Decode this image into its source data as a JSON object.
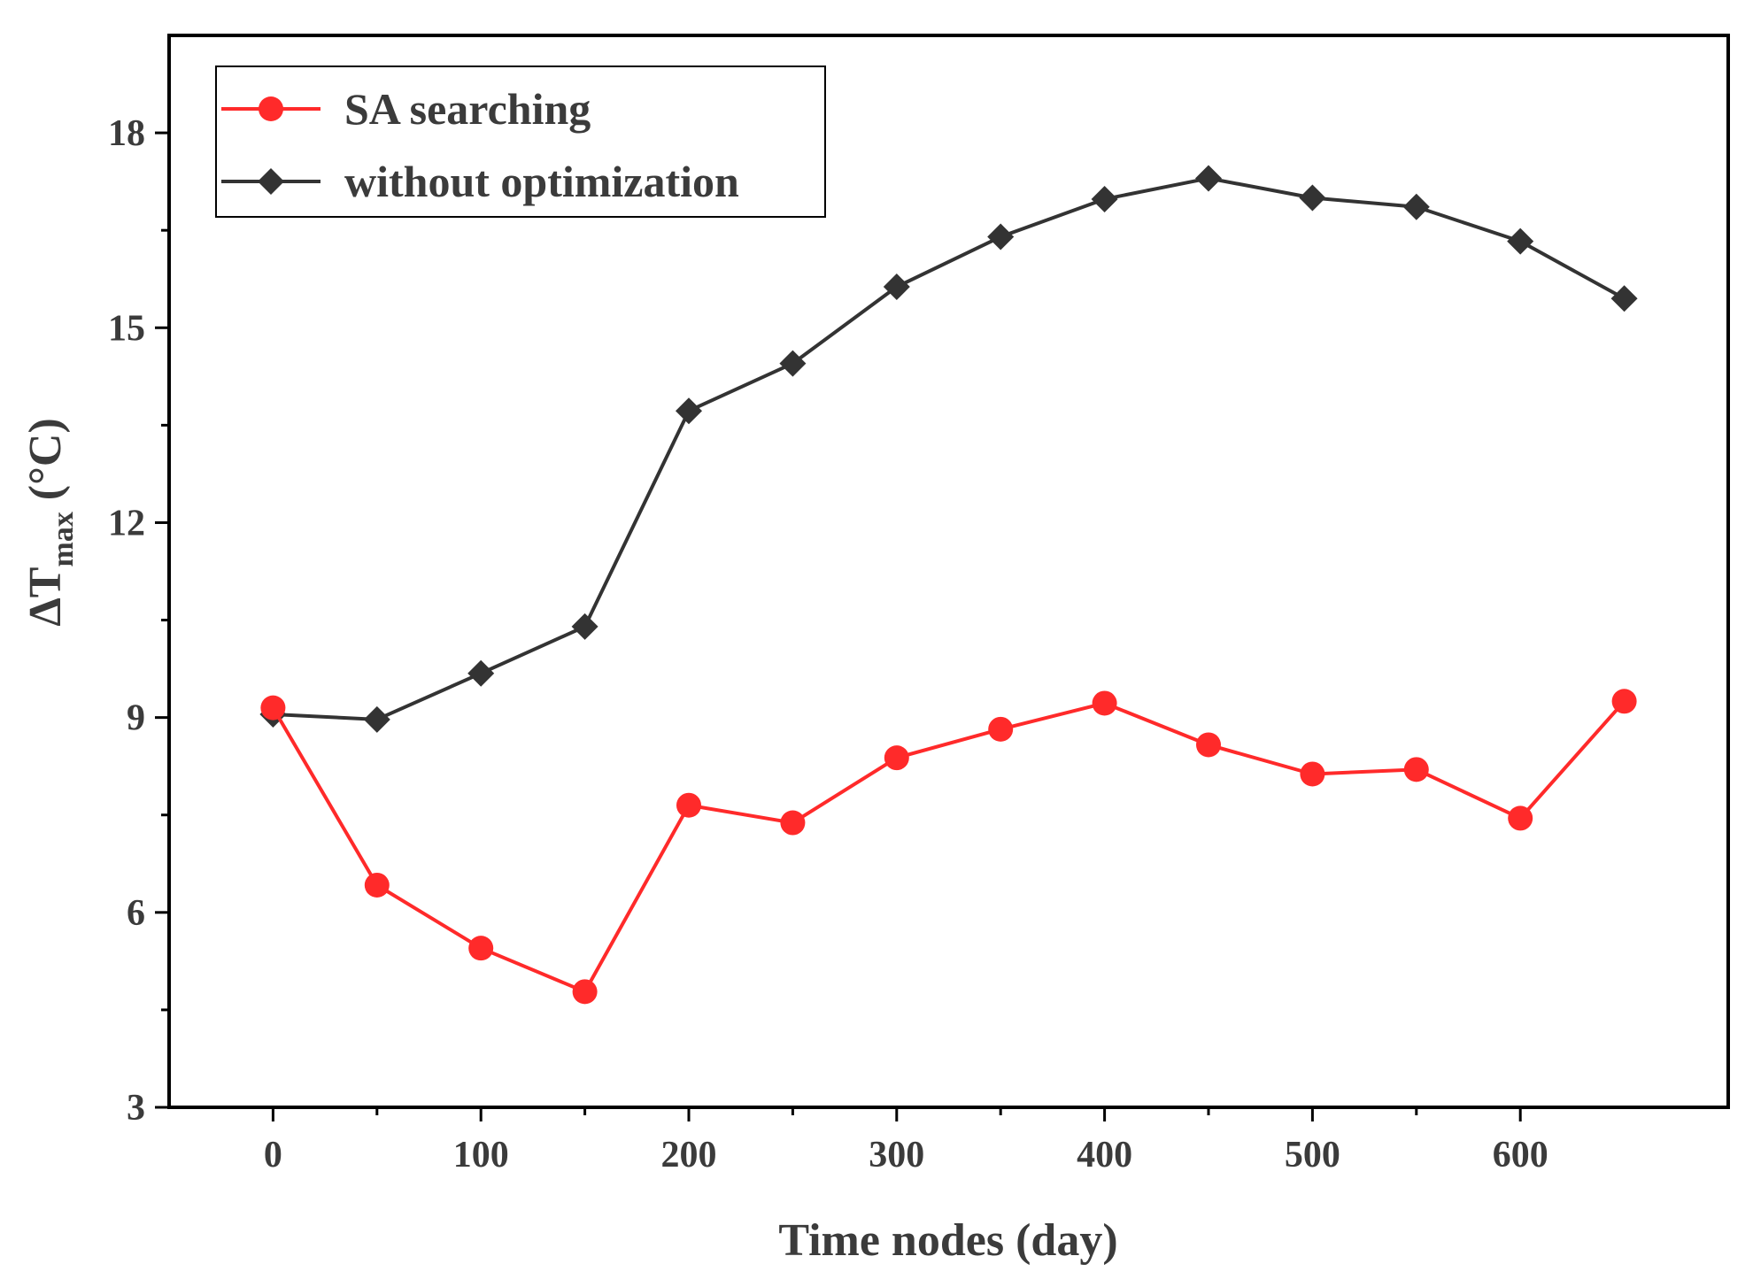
{
  "chart_data": {
    "type": "line",
    "title": "",
    "xlabel": "Time nodes (day)",
    "ylabel_main": "ΔT",
    "ylabel_sub": "max",
    "ylabel_unit": " (°C)",
    "xlim": [
      -50,
      700
    ],
    "ylim": [
      3,
      19.5
    ],
    "xticks": [
      0,
      100,
      200,
      300,
      400,
      500,
      600
    ],
    "yticks": [
      3,
      6,
      9,
      12,
      15,
      18
    ],
    "legend_position": "top-left",
    "x": [
      0,
      50,
      100,
      150,
      200,
      250,
      300,
      350,
      400,
      450,
      500,
      550,
      600,
      650
    ],
    "series": [
      {
        "name": "SA searching",
        "color": "#ff2a2a",
        "marker": "circle",
        "values": [
          9.15,
          6.42,
          5.45,
          4.78,
          7.65,
          7.38,
          8.38,
          8.82,
          9.22,
          8.58,
          8.13,
          8.2,
          7.45,
          9.25
        ]
      },
      {
        "name": "without optimization",
        "color": "#333333",
        "marker": "diamond",
        "values": [
          9.05,
          8.97,
          9.68,
          10.4,
          13.72,
          14.45,
          15.63,
          16.4,
          16.98,
          17.3,
          17.0,
          16.86,
          16.33,
          15.45
        ]
      }
    ]
  }
}
